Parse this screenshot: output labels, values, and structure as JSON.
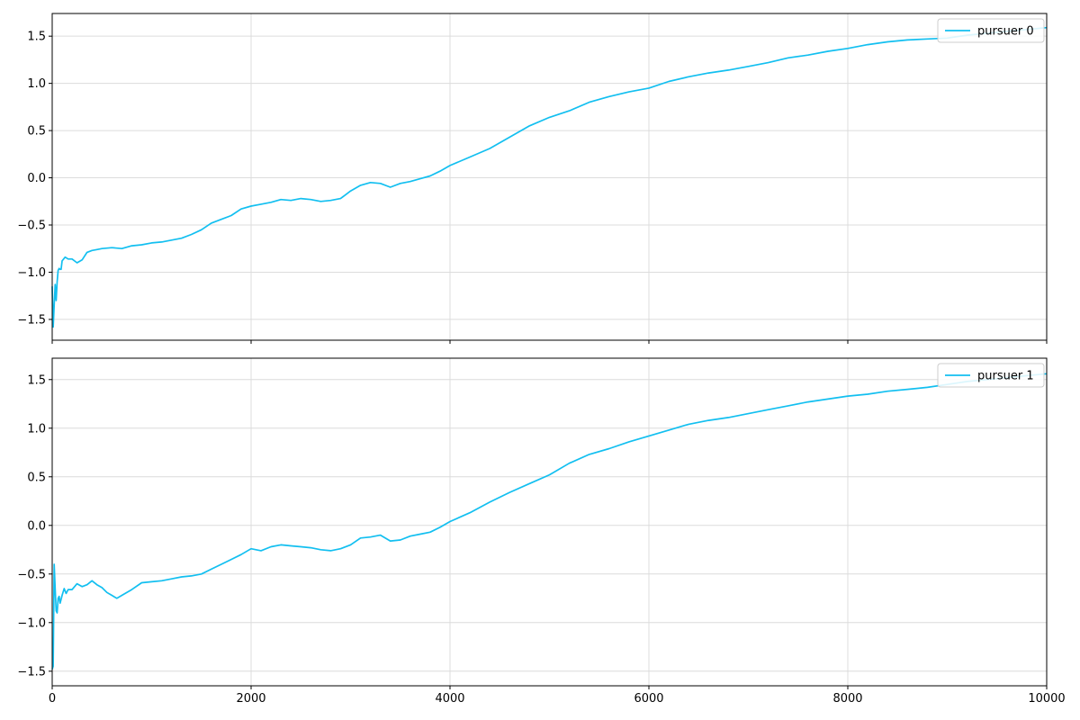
{
  "colors": {
    "series": "#12bff0"
  },
  "chart_data": [
    {
      "type": "line",
      "title": "",
      "xlabel": "",
      "ylabel": "",
      "xlim": [
        0,
        10000
      ],
      "ylim": [
        -1.72,
        1.74
      ],
      "xticks": [
        0,
        2000,
        4000,
        6000,
        8000,
        10000
      ],
      "xtick_labels": [
        "",
        "",
        "",
        "",
        "",
        ""
      ],
      "yticks": [
        -1.5,
        -1.0,
        -0.5,
        0.0,
        0.5,
        1.0,
        1.5
      ],
      "ytick_labels": [
        "−1.5",
        "−1.0",
        "−0.5",
        "0.0",
        "0.5",
        "1.0",
        "1.5"
      ],
      "grid": true,
      "legend_position": "top-right",
      "series": [
        {
          "name": "pursuer 0",
          "color": "#12bff0",
          "x": [
            0,
            10,
            20,
            30,
            40,
            50,
            60,
            70,
            80,
            90,
            100,
            130,
            160,
            200,
            250,
            300,
            350,
            400,
            450,
            500,
            600,
            700,
            800,
            900,
            1000,
            1100,
            1200,
            1300,
            1400,
            1500,
            1600,
            1700,
            1800,
            1900,
            2000,
            2100,
            2200,
            2300,
            2400,
            2500,
            2600,
            2700,
            2800,
            2900,
            3000,
            3100,
            3200,
            3300,
            3400,
            3500,
            3600,
            3700,
            3800,
            3900,
            4000,
            4200,
            4400,
            4600,
            4800,
            5000,
            5200,
            5400,
            5600,
            5800,
            6000,
            6200,
            6400,
            6600,
            6800,
            7000,
            7200,
            7400,
            7600,
            7800,
            8000,
            8200,
            8400,
            8600,
            8800,
            9000,
            9200,
            9400,
            9600,
            9800,
            10000
          ],
          "y": [
            -1.15,
            -1.58,
            -1.35,
            -1.13,
            -1.3,
            -1.1,
            -0.98,
            -0.96,
            -0.97,
            -0.97,
            -0.88,
            -0.84,
            -0.86,
            -0.86,
            -0.9,
            -0.87,
            -0.79,
            -0.77,
            -0.76,
            -0.75,
            -0.74,
            -0.75,
            -0.72,
            -0.71,
            -0.69,
            -0.68,
            -0.66,
            -0.64,
            -0.6,
            -0.55,
            -0.48,
            -0.44,
            -0.4,
            -0.33,
            -0.3,
            -0.28,
            -0.26,
            -0.23,
            -0.24,
            -0.22,
            -0.23,
            -0.25,
            -0.24,
            -0.22,
            -0.14,
            -0.08,
            -0.05,
            -0.06,
            -0.1,
            -0.06,
            -0.04,
            -0.01,
            0.02,
            0.07,
            0.13,
            0.22,
            0.31,
            0.43,
            0.55,
            0.64,
            0.71,
            0.8,
            0.86,
            0.91,
            0.95,
            1.02,
            1.07,
            1.11,
            1.14,
            1.18,
            1.22,
            1.27,
            1.3,
            1.34,
            1.37,
            1.41,
            1.44,
            1.46,
            1.47,
            1.48,
            1.51,
            1.53,
            1.55,
            1.57,
            1.59
          ]
        }
      ]
    },
    {
      "type": "line",
      "title": "",
      "xlabel": "",
      "ylabel": "",
      "xlim": [
        0,
        10000
      ],
      "ylim": [
        -1.65,
        1.72
      ],
      "xticks": [
        0,
        2000,
        4000,
        6000,
        8000,
        10000
      ],
      "xtick_labels": [
        "0",
        "2000",
        "4000",
        "6000",
        "8000",
        "10000"
      ],
      "yticks": [
        -1.5,
        -1.0,
        -0.5,
        0.0,
        0.5,
        1.0,
        1.5
      ],
      "ytick_labels": [
        "−1.5",
        "−1.0",
        "−0.5",
        "0.0",
        "0.5",
        "1.0",
        "1.5"
      ],
      "grid": true,
      "legend_position": "top-right",
      "series": [
        {
          "name": "pursuer 1",
          "color": "#12bff0",
          "x": [
            0,
            10,
            20,
            30,
            40,
            50,
            60,
            70,
            80,
            90,
            100,
            120,
            140,
            160,
            200,
            250,
            300,
            350,
            400,
            450,
            500,
            550,
            600,
            650,
            700,
            800,
            900,
            1000,
            1100,
            1200,
            1300,
            1400,
            1500,
            1600,
            1700,
            1800,
            1900,
            2000,
            2100,
            2200,
            2300,
            2400,
            2500,
            2600,
            2700,
            2800,
            2900,
            3000,
            3100,
            3200,
            3300,
            3400,
            3500,
            3600,
            3700,
            3800,
            3900,
            4000,
            4200,
            4400,
            4600,
            4800,
            5000,
            5200,
            5400,
            5600,
            5800,
            6000,
            6200,
            6400,
            6600,
            6800,
            7000,
            7200,
            7400,
            7600,
            7800,
            8000,
            8200,
            8400,
            8600,
            8800,
            9000,
            9200,
            9400,
            9600,
            9800,
            10000
          ],
          "y": [
            -1.48,
            -1.45,
            -0.4,
            -0.65,
            -0.88,
            -0.9,
            -0.75,
            -0.73,
            -0.8,
            -0.76,
            -0.72,
            -0.65,
            -0.7,
            -0.66,
            -0.66,
            -0.6,
            -0.63,
            -0.61,
            -0.57,
            -0.61,
            -0.64,
            -0.69,
            -0.72,
            -0.75,
            -0.72,
            -0.66,
            -0.59,
            -0.58,
            -0.57,
            -0.55,
            -0.53,
            -0.52,
            -0.5,
            -0.45,
            -0.4,
            -0.35,
            -0.3,
            -0.24,
            -0.26,
            -0.22,
            -0.2,
            -0.21,
            -0.22,
            -0.23,
            -0.25,
            -0.26,
            -0.24,
            -0.2,
            -0.13,
            -0.12,
            -0.1,
            -0.16,
            -0.15,
            -0.11,
            -0.09,
            -0.07,
            -0.02,
            0.04,
            0.13,
            0.24,
            0.34,
            0.43,
            0.52,
            0.64,
            0.73,
            0.79,
            0.86,
            0.92,
            0.98,
            1.04,
            1.08,
            1.11,
            1.15,
            1.19,
            1.23,
            1.27,
            1.3,
            1.33,
            1.35,
            1.38,
            1.4,
            1.42,
            1.45,
            1.48,
            1.5,
            1.52,
            1.54,
            1.56
          ]
        }
      ]
    }
  ]
}
